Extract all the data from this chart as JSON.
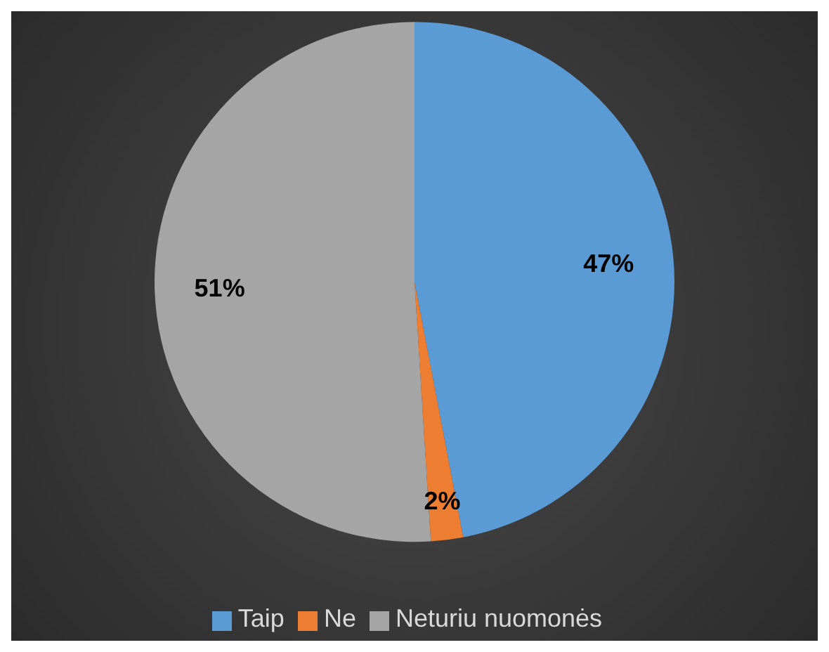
{
  "chart_data": {
    "type": "pie",
    "categories": [
      "Taip",
      "Ne",
      "Neturiu nuomonės"
    ],
    "values": [
      47,
      2,
      51
    ],
    "colors": [
      "#5b9bd5",
      "#ed7d31",
      "#a5a5a5"
    ],
    "value_labels": [
      "47%",
      "2%",
      "51%"
    ],
    "legend": "bottom"
  }
}
